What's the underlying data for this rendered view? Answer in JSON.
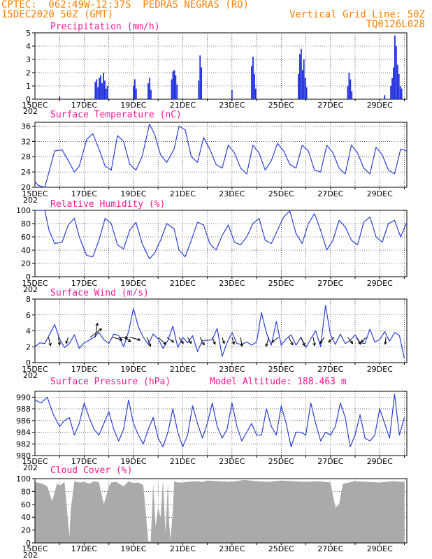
{
  "header": {
    "line1": "CPTEC:  062:49W-12:37S  PEDRAS NEGRAS (RO)",
    "line2_left": "15DEC2020 50Z (GMT)",
    "line2_right": "Vertical Grid Line: 50Z",
    "line3_right": "TQ0126L028"
  },
  "colors": {
    "header": "#ff7f00",
    "title": "#ff1493",
    "line": "#2a3fd6",
    "bar": "#1f2fe0",
    "cloud": "#aaaaaa",
    "arrow": "#000000",
    "grid": "#000000"
  },
  "x_tick_labels": [
    "15DEC",
    "17DEC",
    "19DEC",
    "21DEC",
    "23DEC",
    "25DEC",
    "27DEC",
    "29DEC"
  ],
  "x_year_fragment": "202",
  "chart_data": [
    {
      "type": "bar",
      "title": "Precipitation (mm/h)",
      "ylim": [
        0,
        5
      ],
      "yticks": [
        0,
        1,
        2,
        3,
        4,
        5
      ],
      "bursts": [
        {
          "day": 1.0,
          "vals": [
            0.2
          ]
        },
        {
          "day": 2.45,
          "vals": [
            1.3,
            1.5,
            0.9,
            1.6,
            1.8,
            1.2,
            2.0,
            1.4,
            0.8,
            1.0
          ]
        },
        {
          "day": 4.0,
          "vals": [
            1.0,
            1.5,
            0.8
          ]
        },
        {
          "day": 4.6,
          "vals": [
            1.2,
            1.6,
            0.7
          ]
        },
        {
          "day": 5.55,
          "vals": [
            1.5,
            2.1,
            2.2,
            1.8,
            1.1
          ]
        },
        {
          "day": 6.65,
          "vals": [
            1.4,
            3.3,
            2.4
          ]
        },
        {
          "day": 8.0,
          "vals": [
            0.7
          ]
        },
        {
          "day": 8.8,
          "vals": [
            2.5,
            3.2,
            1.9,
            0.8
          ]
        },
        {
          "day": 10.7,
          "vals": [
            1.9,
            3.4,
            3.8,
            2.2,
            3.0,
            1.6,
            0.9
          ]
        },
        {
          "day": 12.7,
          "vals": [
            1.0,
            2.0,
            1.5,
            0.6
          ]
        },
        {
          "day": 14.2,
          "vals": [
            0.3
          ]
        },
        {
          "day": 14.45,
          "vals": [
            1.0,
            1.6,
            2.4,
            4.8,
            4.0,
            2.6,
            1.9,
            1.0,
            0.8
          ]
        }
      ]
    },
    {
      "type": "line",
      "title": "Surface Temperature (nC)",
      "ylim": [
        20,
        37
      ],
      "yticks": [
        20,
        24,
        28,
        32,
        36
      ],
      "x": [
        0,
        0.13,
        0.4,
        0.57,
        0.8,
        1.1,
        1.35,
        1.6,
        1.8,
        2.1,
        2.35,
        2.6,
        2.85,
        3.1,
        3.35,
        3.6,
        3.85,
        4.1,
        4.35,
        4.65,
        4.85,
        5.1,
        5.35,
        5.65,
        5.85,
        6.1,
        6.35,
        6.6,
        6.85,
        7.1,
        7.35,
        7.6,
        7.85,
        8.1,
        8.35,
        8.6,
        8.85,
        9.1,
        9.35,
        9.6,
        9.85,
        10.1,
        10.35,
        10.6,
        10.85,
        11.1,
        11.35,
        11.6,
        11.85,
        12.1,
        12.35,
        12.6,
        12.85,
        13.1,
        13.35,
        13.6,
        13.85,
        14.1,
        14.35,
        14.6,
        14.85,
        15.1
      ],
      "series": [
        {
          "values": [
            21.5,
            20.5,
            20.0,
            24.0,
            29.5,
            29.8,
            27.0,
            24.0,
            25.5,
            32.5,
            34.0,
            30.0,
            25.5,
            24.5,
            33.5,
            32.0,
            26.0,
            24.5,
            28.0,
            36.5,
            34.0,
            28.5,
            26.5,
            30.0,
            36.0,
            35.0,
            28.0,
            26.5,
            33.0,
            30.0,
            26.0,
            25.0,
            31.0,
            29.0,
            25.0,
            23.5,
            31.0,
            29.0,
            24.5,
            27.0,
            31.5,
            29.5,
            26.0,
            25.0,
            31.0,
            29.5,
            24.5,
            24.0,
            31.0,
            29.0,
            25.0,
            23.5,
            31.0,
            29.0,
            25.0,
            23.5,
            30.5,
            28.5,
            24.5,
            23.5,
            30.0,
            29.5
          ]
        }
      ]
    },
    {
      "type": "line",
      "title": "Relative Humidity (%)",
      "ylim": [
        0,
        100
      ],
      "yticks": [
        0,
        20,
        40,
        60,
        80,
        100
      ],
      "x": [
        0,
        0.4,
        0.57,
        0.8,
        1.1,
        1.35,
        1.6,
        1.8,
        2.1,
        2.35,
        2.6,
        2.85,
        3.1,
        3.35,
        3.6,
        3.85,
        4.1,
        4.35,
        4.65,
        4.85,
        5.1,
        5.35,
        5.65,
        5.85,
        6.1,
        6.35,
        6.6,
        6.85,
        7.1,
        7.35,
        7.6,
        7.85,
        8.1,
        8.35,
        8.6,
        8.85,
        9.1,
        9.35,
        9.6,
        9.85,
        10.1,
        10.35,
        10.6,
        10.85,
        11.1,
        11.35,
        11.6,
        11.85,
        12.1,
        12.35,
        12.6,
        12.85,
        13.1,
        13.35,
        13.6,
        13.85,
        14.1,
        14.35,
        14.6,
        14.85,
        15.1
      ],
      "series": [
        {
          "values": [
            100,
            100,
            70,
            50,
            52,
            78,
            88,
            60,
            32,
            30,
            55,
            88,
            80,
            48,
            42,
            70,
            82,
            50,
            27,
            35,
            55,
            80,
            72,
            40,
            30,
            55,
            82,
            78,
            50,
            40,
            62,
            78,
            52,
            48,
            60,
            80,
            88,
            55,
            50,
            70,
            90,
            99,
            65,
            50,
            80,
            95,
            70,
            40,
            55,
            85,
            75,
            55,
            48,
            82,
            90,
            60,
            52,
            80,
            85,
            60,
            82
          ]
        }
      ]
    },
    {
      "type": "line",
      "title": "Surface Wind (m/s)",
      "ylim": [
        0,
        8
      ],
      "yticks": [
        0,
        2,
        4,
        6,
        8
      ],
      "x": [
        0,
        0.2,
        0.4,
        0.6,
        0.8,
        1.0,
        1.2,
        1.4,
        1.6,
        1.8,
        2.0,
        2.2,
        2.4,
        2.6,
        2.8,
        3.0,
        3.2,
        3.4,
        3.6,
        3.8,
        4.0,
        4.2,
        4.4,
        4.6,
        4.8,
        5.0,
        5.2,
        5.4,
        5.6,
        5.8,
        6.0,
        6.2,
        6.4,
        6.6,
        6.8,
        7.0,
        7.2,
        7.4,
        7.6,
        7.8,
        8.0,
        8.2,
        8.4,
        8.6,
        8.8,
        9.0,
        9.2,
        9.4,
        9.6,
        9.8,
        10.0,
        10.2,
        10.4,
        10.6,
        10.8,
        11.0,
        11.2,
        11.4,
        11.6,
        11.8,
        12.0,
        12.2,
        12.4,
        12.6,
        12.8,
        13.0,
        13.2,
        13.4,
        13.6,
        13.8,
        14.0,
        14.2,
        14.4,
        14.6,
        14.8,
        15.0
      ],
      "series": [
        {
          "values": [
            2.0,
            2.5,
            2.4,
            3.6,
            4.8,
            3.0,
            1.9,
            2.4,
            3.5,
            1.8,
            2.5,
            2.8,
            3.2,
            3.8,
            2.9,
            2.4,
            3.6,
            3.4,
            2.0,
            3.9,
            6.8,
            4.5,
            3.2,
            2.3,
            3.6,
            3.0,
            1.8,
            2.8,
            4.6,
            1.9,
            3.2,
            2.5,
            3.4,
            1.4,
            2.8,
            2.8,
            2.9,
            4.3,
            0.8,
            2.5,
            3.8,
            2.4,
            2.3,
            2.6,
            2.2,
            2.6,
            6.3,
            3.7,
            2.2,
            5.2,
            2.2,
            3.0,
            3.5,
            2.2,
            3.2,
            1.9,
            3.0,
            4.0,
            2.0,
            7.2,
            3.5,
            2.3,
            3.6,
            2.4,
            2.8,
            3.5,
            2.5,
            2.4,
            4.2,
            2.6,
            2.9,
            3.9,
            2.7,
            3.8,
            3.4,
            0.5
          ]
        }
      ],
      "wind_arrows": [
        {
          "x": 0.55,
          "dx": 3,
          "dy": 12
        },
        {
          "x": 0.95,
          "dx": 2,
          "dy": 11
        },
        {
          "x": 1.35,
          "dx": -3,
          "dy": 9
        },
        {
          "x": 2.25,
          "dx": 16,
          "dy": -12
        },
        {
          "x": 2.45,
          "dx": 3,
          "dy": -20
        },
        {
          "x": 3.15,
          "dx": 14,
          "dy": 4
        },
        {
          "x": 3.4,
          "dx": 13,
          "dy": 1
        },
        {
          "x": 3.6,
          "dx": 10,
          "dy": 6
        },
        {
          "x": 3.85,
          "dx": 15,
          "dy": 4
        },
        {
          "x": 4.55,
          "dx": 5,
          "dy": 13
        },
        {
          "x": 5.0,
          "dx": 11,
          "dy": 10
        },
        {
          "x": 5.35,
          "dx": 10,
          "dy": 7
        },
        {
          "x": 5.85,
          "dx": 6,
          "dy": 9
        },
        {
          "x": 6.2,
          "dx": 5,
          "dy": 9
        },
        {
          "x": 6.7,
          "dx": 6,
          "dy": 11
        },
        {
          "x": 7.2,
          "dx": 4,
          "dy": 10
        },
        {
          "x": 7.6,
          "dx": 3,
          "dy": 9
        },
        {
          "x": 8.0,
          "dx": 3,
          "dy": 10
        },
        {
          "x": 8.35,
          "dx": 2,
          "dy": 13
        },
        {
          "x": 9.5,
          "dx": -4,
          "dy": 13
        },
        {
          "x": 9.9,
          "dx": -10,
          "dy": 7
        },
        {
          "x": 10.3,
          "dx": 6,
          "dy": 11
        },
        {
          "x": 10.8,
          "dx": 5,
          "dy": 12
        },
        {
          "x": 11.3,
          "dx": 2,
          "dy": 12
        },
        {
          "x": 11.75,
          "dx": -6,
          "dy": 9
        },
        {
          "x": 12.15,
          "dx": -8,
          "dy": 7
        },
        {
          "x": 12.7,
          "dx": 7,
          "dy": 9
        },
        {
          "x": 13.05,
          "dx": 6,
          "dy": 10
        },
        {
          "x": 13.45,
          "dx": -7,
          "dy": 7
        },
        {
          "x": 14.25,
          "dx": -1,
          "dy": 10
        }
      ]
    },
    {
      "type": "line",
      "title": "Surface Pressure (hPa)",
      "annotation": "Model Altitude: 188.463  m",
      "ylim": [
        980,
        991
      ],
      "yticks": [
        980,
        982,
        984,
        986,
        988,
        990
      ],
      "x": [
        0,
        0.25,
        0.5,
        0.75,
        1.0,
        1.2,
        1.4,
        1.6,
        1.8,
        2.0,
        2.2,
        2.4,
        2.6,
        2.8,
        3.0,
        3.2,
        3.4,
        3.6,
        3.8,
        4.0,
        4.2,
        4.4,
        4.6,
        4.8,
        5.0,
        5.2,
        5.4,
        5.6,
        5.8,
        6.0,
        6.2,
        6.4,
        6.6,
        6.8,
        7.0,
        7.2,
        7.4,
        7.6,
        7.8,
        8.0,
        8.2,
        8.4,
        8.6,
        8.8,
        9.0,
        9.2,
        9.4,
        9.6,
        9.8,
        10.0,
        10.2,
        10.4,
        10.6,
        10.8,
        11.0,
        11.2,
        11.4,
        11.6,
        11.8,
        12.0,
        12.2,
        12.4,
        12.6,
        12.8,
        13.0,
        13.2,
        13.4,
        13.6,
        13.8,
        14.0,
        14.2,
        14.4,
        14.6,
        14.8,
        15.0
      ],
      "series": [
        {
          "values": [
            989.5,
            989.0,
            990.0,
            987.0,
            985.0,
            986.0,
            986.5,
            983.5,
            985.5,
            989.0,
            986.5,
            984.5,
            983.5,
            985.5,
            987.5,
            984.5,
            982.5,
            984.5,
            989.5,
            985.5,
            983.5,
            982.0,
            984.5,
            986.5,
            983.0,
            981.5,
            984.0,
            988.0,
            984.0,
            981.5,
            983.5,
            988.5,
            985.5,
            983.0,
            985.5,
            989.0,
            985.0,
            983.0,
            984.5,
            989.0,
            985.0,
            982.5,
            984.0,
            985.5,
            983.5,
            983.5,
            988.0,
            985.0,
            983.5,
            988.5,
            985.5,
            981.5,
            984.0,
            984.0,
            983.5,
            989.0,
            985.5,
            982.5,
            984.0,
            983.5,
            985.0,
            989.0,
            986.5,
            981.5,
            983.5,
            987.0,
            983.0,
            982.5,
            983.5,
            988.0,
            985.5,
            983.0,
            990.5,
            983.5,
            986.5
          ]
        }
      ]
    },
    {
      "type": "area",
      "title": "Cloud Cover (%)",
      "ylim": [
        0,
        100
      ],
      "yticks": [
        0,
        20,
        40,
        60,
        80,
        100
      ],
      "x": [
        0,
        0.3,
        0.5,
        0.7,
        0.9,
        1.0,
        1.2,
        1.4,
        1.45,
        1.6,
        1.8,
        2.0,
        2.2,
        2.4,
        2.6,
        2.8,
        3.0,
        3.1,
        3.3,
        3.6,
        3.8,
        4.0,
        4.2,
        4.4,
        4.6,
        4.7,
        4.8,
        4.9,
        5.0,
        5.1,
        5.2,
        5.3,
        5.4,
        5.45,
        5.5,
        5.6,
        5.65,
        5.8,
        6.0,
        6.2,
        6.5,
        6.8,
        7.0,
        7.5,
        8.0,
        8.5,
        9.0,
        9.5,
        10.0,
        10.5,
        11.0,
        11.5,
        12.0,
        12.2,
        12.35,
        12.5,
        13.0,
        13.5,
        14.0,
        14.5,
        15.0
      ],
      "series": [
        {
          "values": [
            95,
            92,
            88,
            65,
            93,
            89,
            95,
            10,
            50,
            96,
            94,
            95,
            92,
            96,
            94,
            60,
            88,
            94,
            95,
            88,
            96,
            93,
            94,
            90,
            3,
            2,
            92,
            25,
            55,
            40,
            98,
            15,
            96,
            30,
            5,
            50,
            96,
            94,
            94,
            95,
            96,
            95,
            97,
            96,
            95,
            98,
            96,
            95,
            97,
            96,
            95,
            96,
            94,
            55,
            60,
            92,
            96,
            95,
            94,
            96,
            95
          ]
        }
      ]
    }
  ]
}
